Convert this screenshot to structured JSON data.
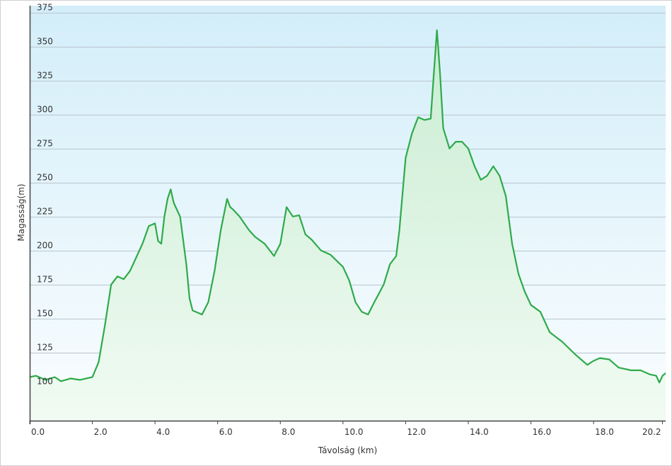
{
  "chart_data": {
    "type": "area",
    "xlabel": "Távolság  (km)",
    "ylabel": "Magasság(m)",
    "xlim": [
      0,
      20.3
    ],
    "ylim": [
      75,
      380
    ],
    "x_ticks": [
      0.0,
      2.0,
      4.0,
      6.0,
      8.0,
      10.0,
      12.0,
      14.0,
      16.0,
      18.0,
      20.2
    ],
    "x_tick_labels": [
      "0.0",
      "2.0",
      "4.0",
      "6.0",
      "8.0",
      "10.0",
      "12.0",
      "14.0",
      "16.0",
      "18.0",
      "20.2"
    ],
    "y_ticks": [
      100,
      125,
      150,
      175,
      200,
      225,
      250,
      275,
      300,
      325,
      350,
      375
    ],
    "y_tick_labels": [
      "100",
      "125",
      "150",
      "175",
      "200",
      "225",
      "250",
      "275",
      "300",
      "325",
      "350",
      "375"
    ],
    "grid": "horizontal",
    "colors": {
      "line": "#2eaa4a",
      "fill_top": "#c9ecd2",
      "fill_bottom": "#f1fbf3",
      "bg_top": "#d3eef9",
      "bg_bottom": "#fafdff",
      "grid": "#b9c6cf",
      "axis": "#444444"
    },
    "series": [
      {
        "x": [
          0,
          0.2,
          0.5,
          0.8,
          1.0,
          1.3,
          1.6,
          1.8,
          2.0,
          2.2,
          2.4,
          2.6,
          2.8,
          3.0,
          3.2,
          3.4,
          3.6,
          3.8,
          4.0,
          4.1,
          4.2,
          4.3,
          4.4,
          4.5,
          4.6,
          4.8,
          5.0,
          5.1,
          5.2,
          5.3,
          5.5,
          5.7,
          5.9,
          6.1,
          6.3,
          6.4,
          6.5,
          6.7,
          7.0,
          7.2,
          7.5,
          7.8,
          8.0,
          8.2,
          8.4,
          8.6,
          8.8,
          9.0,
          9.3,
          9.6,
          10.0,
          10.2,
          10.4,
          10.6,
          10.8,
          11.0,
          11.3,
          11.5,
          11.7,
          11.8,
          12.0,
          12.2,
          12.4,
          12.6,
          12.8,
          12.9,
          13.0,
          13.1,
          13.2,
          13.4,
          13.6,
          13.8,
          14.0,
          14.2,
          14.4,
          14.6,
          14.8,
          15.0,
          15.2,
          15.4,
          15.6,
          15.8,
          16.0,
          16.3,
          16.6,
          17.0,
          17.4,
          17.8,
          18.0,
          18.2,
          18.5,
          18.8,
          19.2,
          19.5,
          19.8,
          20.0,
          20.1,
          20.2,
          20.3
        ],
        "y": [
          107,
          108,
          105,
          107,
          104,
          106,
          105,
          106,
          107,
          118,
          145,
          175,
          181,
          179,
          185,
          195,
          205,
          218,
          220,
          207,
          205,
          225,
          238,
          245,
          235,
          225,
          190,
          165,
          156,
          155,
          153,
          162,
          185,
          215,
          238,
          232,
          230,
          225,
          215,
          210,
          205,
          196,
          205,
          232,
          225,
          226,
          212,
          208,
          200,
          197,
          188,
          178,
          162,
          155,
          153,
          162,
          175,
          190,
          196,
          215,
          268,
          286,
          298,
          296,
          297,
          330,
          362,
          330,
          290,
          275,
          280,
          280,
          275,
          262,
          252,
          255,
          262,
          255,
          240,
          205,
          183,
          170,
          160,
          155,
          140,
          133,
          124,
          116,
          119,
          121,
          120,
          114,
          112,
          112,
          109,
          108,
          103,
          108,
          110
        ]
      }
    ]
  }
}
